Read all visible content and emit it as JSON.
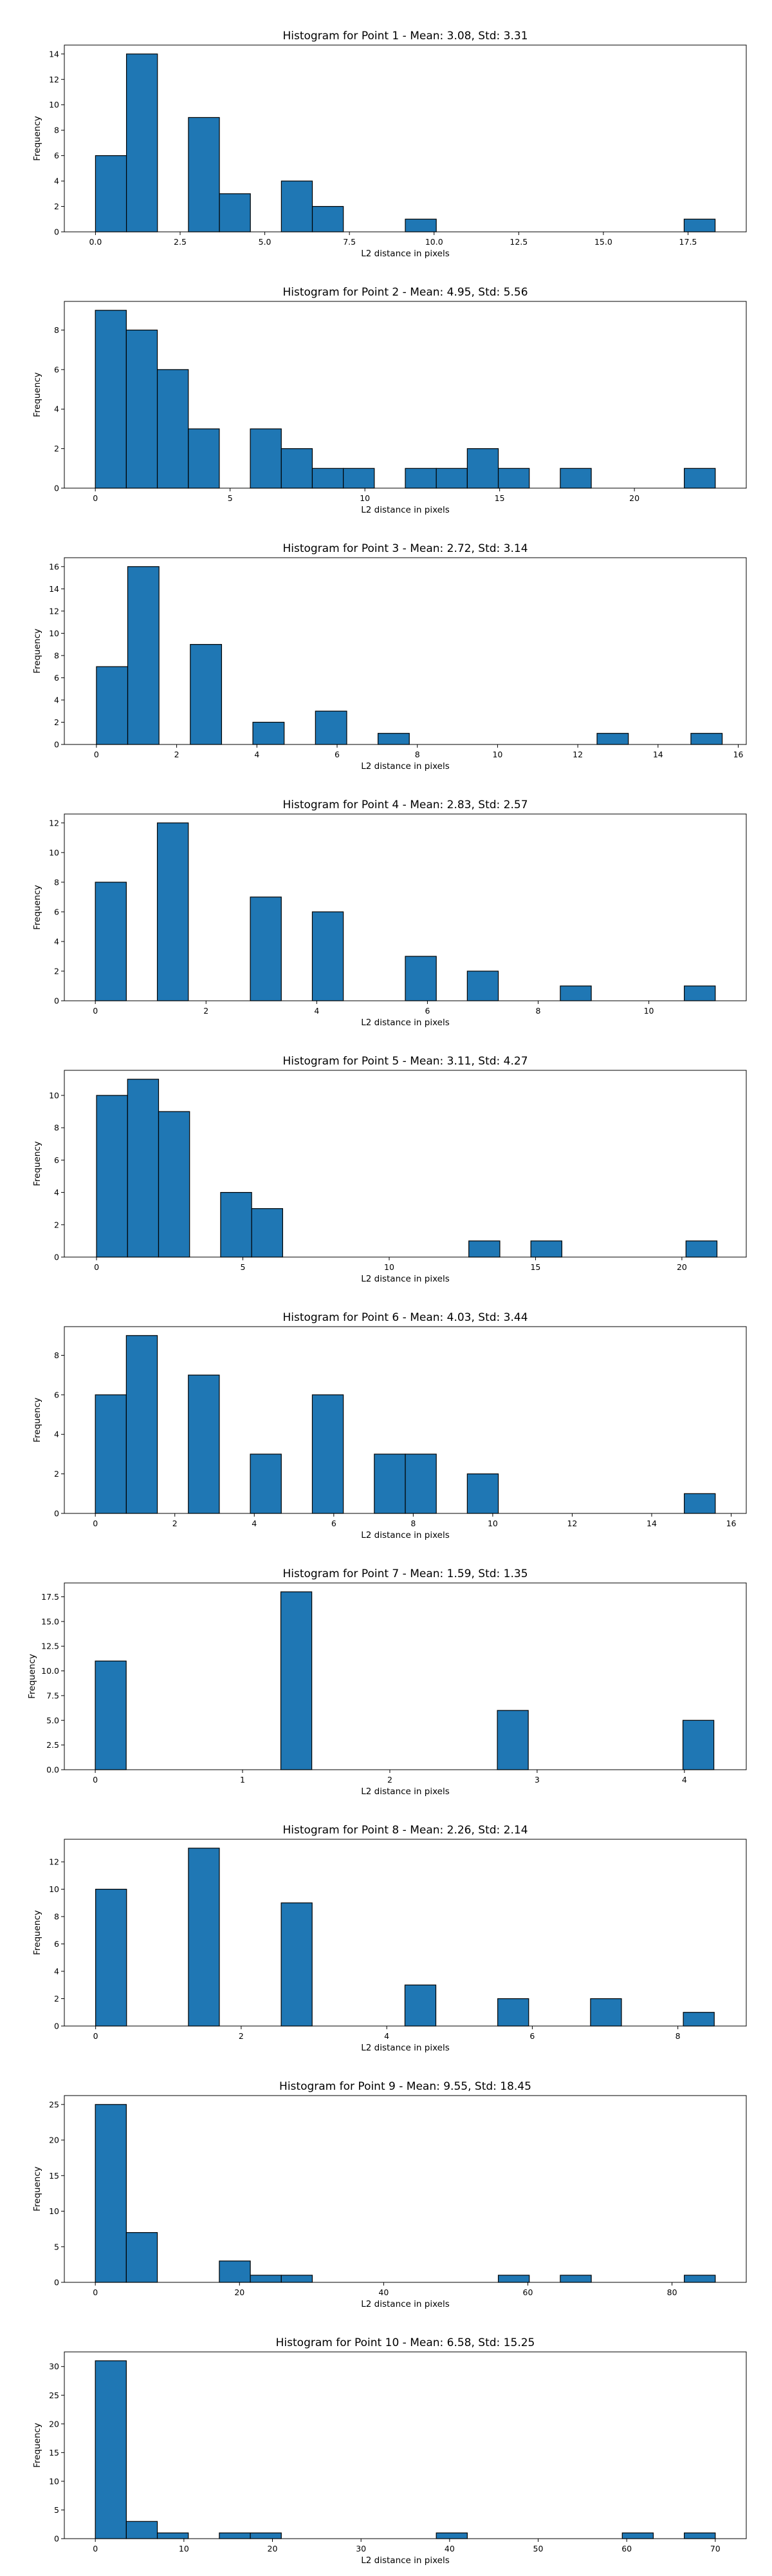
{
  "chart_data": [
    {
      "type": "bar",
      "title": "Histogram for Point 1 - Mean: 3.08, Std: 3.31",
      "xlabel": "L2 distance in pixels",
      "ylabel": "Frequency",
      "xlim": [
        -0.92,
        19.22
      ],
      "ylim": [
        0,
        14.7
      ],
      "xticks": [
        0,
        2.5,
        5.0,
        7.5,
        10.0,
        12.5,
        15.0,
        17.5
      ],
      "xtick_labels": [
        "0.0",
        "2.5",
        "5.0",
        "7.5",
        "10.0",
        "12.5",
        "15.0",
        "17.5"
      ],
      "yticks": [
        0,
        2,
        4,
        6,
        8,
        10,
        12,
        14
      ],
      "bins": [
        [
          0.0,
          0.915,
          6
        ],
        [
          0.915,
          1.83,
          14
        ],
        [
          2.745,
          3.66,
          9
        ],
        [
          3.66,
          4.575,
          3
        ],
        [
          5.49,
          6.405,
          4
        ],
        [
          6.405,
          7.32,
          2
        ],
        [
          9.15,
          10.065,
          1
        ],
        [
          17.385,
          18.3,
          1
        ]
      ]
    },
    {
      "type": "bar",
      "title": "Histogram for Point 2 - Mean: 4.95, Std: 5.56",
      "xlabel": "L2 distance in pixels",
      "ylabel": "Frequency",
      "xlim": [
        -1.15,
        24.15
      ],
      "ylim": [
        0,
        9.45
      ],
      "xticks": [
        0,
        5,
        10,
        15,
        20
      ],
      "xtick_labels": [
        "0",
        "5",
        "10",
        "15",
        "20"
      ],
      "yticks": [
        0,
        2,
        4,
        6,
        8
      ],
      "bins": [
        [
          0.0,
          1.15,
          9
        ],
        [
          1.15,
          2.3,
          8
        ],
        [
          2.3,
          3.45,
          6
        ],
        [
          3.45,
          4.6,
          3
        ],
        [
          5.75,
          6.9,
          3
        ],
        [
          6.9,
          8.05,
          2
        ],
        [
          8.05,
          9.2,
          1
        ],
        [
          9.2,
          10.35,
          1
        ],
        [
          11.5,
          12.65,
          1
        ],
        [
          12.65,
          13.8,
          1
        ],
        [
          13.8,
          14.95,
          2
        ],
        [
          14.95,
          16.1,
          1
        ],
        [
          17.25,
          18.4,
          1
        ],
        [
          21.85,
          23.0,
          1
        ]
      ]
    },
    {
      "type": "bar",
      "title": "Histogram for Point 3 - Mean: 2.72, Std: 3.14",
      "xlabel": "L2 distance in pixels",
      "ylabel": "Frequency",
      "xlim": [
        -0.8,
        16.2
      ],
      "ylim": [
        0,
        16.8
      ],
      "xticks": [
        0,
        2,
        4,
        6,
        8,
        10,
        12,
        14,
        16
      ],
      "xtick_labels": [
        "0",
        "2",
        "4",
        "6",
        "8",
        "10",
        "12",
        "14",
        "16"
      ],
      "yticks": [
        0,
        2,
        4,
        6,
        8,
        10,
        12,
        14,
        16
      ],
      "bins": [
        [
          0.0,
          0.78,
          7
        ],
        [
          0.78,
          1.56,
          16
        ],
        [
          2.34,
          3.12,
          9
        ],
        [
          3.9,
          4.68,
          2
        ],
        [
          5.46,
          6.24,
          3
        ],
        [
          7.02,
          7.8,
          1
        ],
        [
          12.48,
          13.26,
          1
        ],
        [
          14.82,
          15.6,
          1
        ]
      ]
    },
    {
      "type": "bar",
      "title": "Histogram for Point 4 - Mean: 2.83, Std: 2.57",
      "xlabel": "L2 distance in pixels",
      "ylabel": "Frequency",
      "xlim": [
        -0.56,
        11.76
      ],
      "ylim": [
        0,
        12.6
      ],
      "xticks": [
        0,
        2,
        4,
        6,
        8,
        10
      ],
      "xtick_labels": [
        "0",
        "2",
        "4",
        "6",
        "8",
        "10"
      ],
      "yticks": [
        0,
        2,
        4,
        6,
        8,
        10,
        12
      ],
      "bins": [
        [
          0.0,
          0.56,
          8
        ],
        [
          1.12,
          1.68,
          12
        ],
        [
          2.8,
          3.36,
          7
        ],
        [
          3.92,
          4.48,
          6
        ],
        [
          5.6,
          6.16,
          3
        ],
        [
          6.72,
          7.28,
          2
        ],
        [
          8.4,
          8.96,
          1
        ],
        [
          10.64,
          11.2,
          1
        ]
      ]
    },
    {
      "type": "bar",
      "title": "Histogram for Point 5 - Mean: 3.11, Std: 4.27",
      "xlabel": "L2 distance in pixels",
      "ylabel": "Frequency",
      "xlim": [
        -1.1,
        22.2
      ],
      "ylim": [
        0,
        11.55
      ],
      "xticks": [
        0,
        5,
        10,
        15,
        20
      ],
      "xtick_labels": [
        "0",
        "5",
        "10",
        "15",
        "20"
      ],
      "yticks": [
        0,
        2,
        4,
        6,
        8,
        10
      ],
      "bins": [
        [
          0.0,
          1.06,
          10
        ],
        [
          1.06,
          2.12,
          11
        ],
        [
          2.12,
          3.18,
          9
        ],
        [
          4.24,
          5.3,
          4
        ],
        [
          5.3,
          6.36,
          3
        ],
        [
          12.72,
          13.78,
          1
        ],
        [
          14.84,
          15.9,
          1
        ],
        [
          20.14,
          21.2,
          1
        ]
      ]
    },
    {
      "type": "bar",
      "title": "Histogram for Point 6 - Mean: 4.03, Std: 3.44",
      "xlabel": "L2 distance in pixels",
      "ylabel": "Frequency",
      "xlim": [
        -0.78,
        16.38
      ],
      "ylim": [
        0,
        9.45
      ],
      "xticks": [
        0,
        2,
        4,
        6,
        8,
        10,
        12,
        14,
        16
      ],
      "xtick_labels": [
        "0",
        "2",
        "4",
        "6",
        "8",
        "10",
        "12",
        "14",
        "16"
      ],
      "yticks": [
        0,
        2,
        4,
        6,
        8
      ],
      "bins": [
        [
          0.0,
          0.78,
          6
        ],
        [
          0.78,
          1.56,
          9
        ],
        [
          2.34,
          3.12,
          7
        ],
        [
          3.9,
          4.68,
          3
        ],
        [
          5.46,
          6.24,
          6
        ],
        [
          7.02,
          7.8,
          3
        ],
        [
          7.8,
          8.58,
          3
        ],
        [
          9.36,
          10.14,
          2
        ],
        [
          14.82,
          15.6,
          1
        ]
      ]
    },
    {
      "type": "bar",
      "title": "Histogram for Point 7 - Mean: 1.59, Std: 1.35",
      "xlabel": "L2 distance in pixels",
      "ylabel": "Frequency",
      "xlim": [
        -0.21,
        4.42
      ],
      "ylim": [
        0,
        18.9
      ],
      "xticks": [
        0,
        1,
        2,
        3,
        4
      ],
      "xtick_labels": [
        "0",
        "1",
        "2",
        "3",
        "4"
      ],
      "yticks": [
        0,
        2.5,
        5.0,
        7.5,
        10.0,
        12.5,
        15.0,
        17.5
      ],
      "ytick_labels": [
        "0.0",
        "2.5",
        "5.0",
        "7.5",
        "10.0",
        "12.5",
        "15.0",
        "17.5"
      ],
      "bins": [
        [
          0.0,
          0.21,
          11
        ],
        [
          1.26,
          1.47,
          18
        ],
        [
          2.73,
          2.94,
          6
        ],
        [
          3.99,
          4.2,
          5
        ]
      ]
    },
    {
      "type": "bar",
      "title": "Histogram for Point 8 - Mean: 2.26, Std: 2.14",
      "xlabel": "L2 distance in pixels",
      "ylabel": "Frequency",
      "xlim": [
        -0.43,
        8.94
      ],
      "ylim": [
        0,
        13.65
      ],
      "xticks": [
        0,
        2,
        4,
        6,
        8
      ],
      "xtick_labels": [
        "0",
        "2",
        "4",
        "6",
        "8"
      ],
      "yticks": [
        0,
        2,
        4,
        6,
        8,
        10,
        12
      ],
      "bins": [
        [
          0.0,
          0.425,
          10
        ],
        [
          1.275,
          1.7,
          13
        ],
        [
          2.55,
          2.975,
          9
        ],
        [
          4.25,
          4.675,
          3
        ],
        [
          5.525,
          5.95,
          2
        ],
        [
          6.8,
          7.225,
          2
        ],
        [
          8.075,
          8.5,
          1
        ]
      ]
    },
    {
      "type": "bar",
      "title": "Histogram for Point 9 - Mean: 9.55, Std: 18.45",
      "xlabel": "L2 distance in pixels",
      "ylabel": "Frequency",
      "xlim": [
        -4.3,
        90.3
      ],
      "ylim": [
        0,
        26.25
      ],
      "xticks": [
        0,
        20,
        40,
        60,
        80
      ],
      "xtick_labels": [
        "0",
        "20",
        "40",
        "60",
        "80"
      ],
      "yticks": [
        0,
        5,
        10,
        15,
        20,
        25
      ],
      "bins": [
        [
          0.0,
          4.3,
          25
        ],
        [
          4.3,
          8.6,
          7
        ],
        [
          17.2,
          21.5,
          3
        ],
        [
          21.5,
          25.8,
          1
        ],
        [
          25.8,
          30.1,
          1
        ],
        [
          55.9,
          60.2,
          1
        ],
        [
          64.5,
          68.8,
          1
        ],
        [
          81.7,
          86.0,
          1
        ]
      ]
    },
    {
      "type": "bar",
      "title": "Histogram for Point 10 - Mean: 6.58, Std: 15.25",
      "xlabel": "L2 distance in pixels",
      "ylabel": "Frequency",
      "xlim": [
        -3.5,
        73.5
      ],
      "ylim": [
        0,
        32.55
      ],
      "xticks": [
        0,
        10,
        20,
        30,
        40,
        50,
        60,
        70
      ],
      "xtick_labels": [
        "0",
        "10",
        "20",
        "30",
        "40",
        "50",
        "60",
        "70"
      ],
      "yticks": [
        0,
        5,
        10,
        15,
        20,
        25,
        30
      ],
      "bins": [
        [
          0.0,
          3.5,
          31
        ],
        [
          3.5,
          7.0,
          3
        ],
        [
          7.0,
          10.5,
          1
        ],
        [
          14.0,
          17.5,
          1
        ],
        [
          17.5,
          21.0,
          1
        ],
        [
          38.5,
          42.0,
          1
        ],
        [
          59.5,
          63.0,
          1
        ],
        [
          66.5,
          70.0,
          1
        ]
      ]
    }
  ],
  "colors": {
    "bar_fill": "#1f77b4",
    "bar_edge": "#000000",
    "axes": "#000000",
    "background": "#ffffff"
  }
}
